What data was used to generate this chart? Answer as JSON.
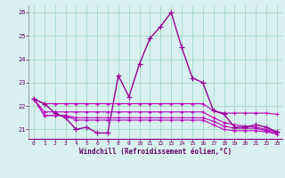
{
  "hours": [
    0,
    1,
    2,
    3,
    4,
    5,
    6,
    7,
    8,
    9,
    10,
    11,
    12,
    13,
    14,
    15,
    16,
    17,
    18,
    19,
    20,
    21,
    22,
    23
  ],
  "line_main": [
    22.3,
    22.1,
    21.7,
    21.5,
    21.0,
    21.1,
    20.85,
    20.85,
    23.3,
    22.4,
    23.8,
    24.9,
    25.4,
    26.0,
    24.5,
    23.2,
    23.0,
    21.8,
    21.65,
    21.1,
    21.1,
    21.2,
    21.1,
    20.9
  ],
  "line_max": [
    22.3,
    22.1,
    22.1,
    22.1,
    22.1,
    22.1,
    22.1,
    22.1,
    22.1,
    22.1,
    22.1,
    22.1,
    22.1,
    22.1,
    22.1,
    22.1,
    22.1,
    21.8,
    21.7,
    21.7,
    21.7,
    21.7,
    21.7,
    21.65
  ],
  "line_mid1": [
    22.3,
    21.75,
    21.75,
    21.75,
    21.75,
    21.75,
    21.75,
    21.75,
    21.75,
    21.75,
    21.75,
    21.75,
    21.75,
    21.75,
    21.75,
    21.75,
    21.75,
    21.5,
    21.3,
    21.2,
    21.15,
    21.1,
    21.0,
    20.9
  ],
  "line_mid2": [
    22.3,
    21.6,
    21.6,
    21.6,
    21.5,
    21.5,
    21.5,
    21.5,
    21.5,
    21.5,
    21.5,
    21.5,
    21.5,
    21.5,
    21.5,
    21.5,
    21.5,
    21.35,
    21.15,
    21.05,
    21.05,
    21.05,
    20.95,
    20.85
  ],
  "line_min": [
    22.3,
    21.6,
    21.6,
    21.6,
    21.4,
    21.4,
    21.4,
    21.4,
    21.4,
    21.4,
    21.4,
    21.4,
    21.4,
    21.4,
    21.4,
    21.4,
    21.4,
    21.2,
    21.0,
    20.95,
    20.95,
    20.95,
    20.9,
    20.8
  ],
  "color_main": "#990099",
  "color_other": "#bb00bb",
  "background": "#d8f0f0",
  "grid_color": "#aaddcc",
  "ylim": [
    20.6,
    26.3
  ],
  "xlim": [
    -0.5,
    23.5
  ],
  "yticks": [
    21,
    22,
    23,
    24,
    25,
    26
  ],
  "xticks": [
    0,
    1,
    2,
    3,
    4,
    5,
    6,
    7,
    8,
    9,
    10,
    11,
    12,
    13,
    14,
    15,
    16,
    17,
    18,
    19,
    20,
    21,
    22,
    23
  ],
  "xlabel": "Windchill (Refroidissement éolien,°C)"
}
